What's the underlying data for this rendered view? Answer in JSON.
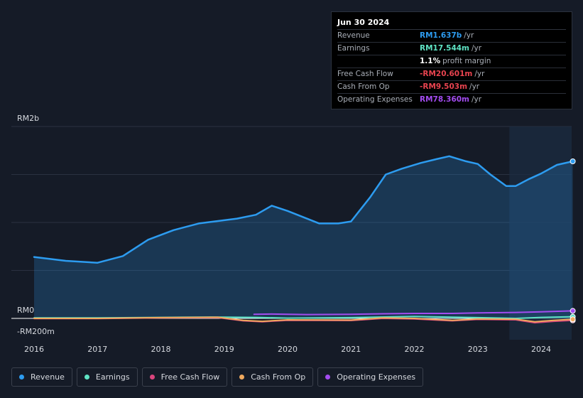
{
  "chart_data": {
    "type": "area",
    "x_labels": [
      "2016",
      "2017",
      "2018",
      "2019",
      "2020",
      "2021",
      "2022",
      "2023",
      "2024"
    ],
    "x_years": [
      2016,
      2017,
      2018,
      2019,
      2020,
      2021,
      2022,
      2023,
      2024
    ],
    "y_top_label": "RM2b",
    "y_zero_label": "RM0",
    "y_bottom_label": "-RM200m",
    "ylim": [
      -200,
      2000
    ],
    "ylabel_unit": "RM m",
    "forecast_start": 2023.5,
    "series": [
      {
        "name": "Revenue",
        "color": "#2d9cf0",
        "fill": true,
        "points": [
          [
            2016,
            640
          ],
          [
            2016.5,
            600
          ],
          [
            2017,
            580
          ],
          [
            2017.4,
            650
          ],
          [
            2017.8,
            820
          ],
          [
            2018.2,
            920
          ],
          [
            2018.6,
            990
          ],
          [
            2018.9,
            1015
          ],
          [
            2019.2,
            1040
          ],
          [
            2019.5,
            1080
          ],
          [
            2019.75,
            1175
          ],
          [
            2020,
            1120
          ],
          [
            2020.5,
            990
          ],
          [
            2020.8,
            990
          ],
          [
            2021,
            1010
          ],
          [
            2021.3,
            1260
          ],
          [
            2021.55,
            1500
          ],
          [
            2021.8,
            1560
          ],
          [
            2022.1,
            1620
          ],
          [
            2022.35,
            1660
          ],
          [
            2022.55,
            1690
          ],
          [
            2022.8,
            1640
          ],
          [
            2023,
            1610
          ],
          [
            2023.2,
            1500
          ],
          [
            2023.45,
            1380
          ],
          [
            2023.6,
            1380
          ],
          [
            2023.8,
            1450
          ],
          [
            2024,
            1510
          ],
          [
            2024.25,
            1600
          ],
          [
            2024.5,
            1637
          ]
        ]
      },
      {
        "name": "Earnings",
        "color": "#5fe3c4",
        "fill": false,
        "points": [
          [
            2016,
            5
          ],
          [
            2017,
            5
          ],
          [
            2018,
            10
          ],
          [
            2018.8,
            14
          ],
          [
            2019.5,
            10
          ],
          [
            2020,
            3
          ],
          [
            2021,
            8
          ],
          [
            2022,
            20
          ],
          [
            2023,
            8
          ],
          [
            2023.6,
            0
          ],
          [
            2024,
            10
          ],
          [
            2024.5,
            17.5
          ]
        ]
      },
      {
        "name": "Free Cash Flow",
        "color": "#d9457d",
        "fill": false,
        "points": [
          [
            2016,
            -2
          ],
          [
            2017,
            -2
          ],
          [
            2018,
            5
          ],
          [
            2018.9,
            8
          ],
          [
            2019.3,
            -25
          ],
          [
            2019.6,
            -35
          ],
          [
            2020,
            -20
          ],
          [
            2021,
            -22
          ],
          [
            2021.5,
            0
          ],
          [
            2022,
            -5
          ],
          [
            2022.6,
            -25
          ],
          [
            2023,
            -10
          ],
          [
            2023.6,
            -15
          ],
          [
            2023.9,
            -45
          ],
          [
            2024.2,
            -30
          ],
          [
            2024.5,
            -20.6
          ]
        ]
      },
      {
        "name": "Cash From Op",
        "color": "#f0a95e",
        "fill": false,
        "points": [
          [
            2016,
            0
          ],
          [
            2017,
            0
          ],
          [
            2018,
            8
          ],
          [
            2018.9,
            12
          ],
          [
            2019.3,
            -20
          ],
          [
            2019.6,
            -30
          ],
          [
            2020,
            -15
          ],
          [
            2021,
            -18
          ],
          [
            2021.5,
            5
          ],
          [
            2022,
            0
          ],
          [
            2022.6,
            -20
          ],
          [
            2023,
            -5
          ],
          [
            2023.6,
            -8
          ],
          [
            2023.9,
            -35
          ],
          [
            2024.2,
            -20
          ],
          [
            2024.5,
            -9.5
          ]
        ]
      },
      {
        "name": "Operating Expenses",
        "color": "#a34cf0",
        "fill": false,
        "points": [
          [
            2019.47,
            42
          ],
          [
            2019.75,
            45
          ],
          [
            2020.3,
            40
          ],
          [
            2021,
            42
          ],
          [
            2021.5,
            48
          ],
          [
            2022,
            52
          ],
          [
            2022.6,
            52
          ],
          [
            2023,
            58
          ],
          [
            2023.6,
            62
          ],
          [
            2024,
            68
          ],
          [
            2024.5,
            78.4
          ]
        ]
      }
    ]
  },
  "tooltip": {
    "date": "Jun 30 2024",
    "rows": [
      {
        "label": "Revenue",
        "value": "RM1.637b",
        "unit": "/yr",
        "color": "#2d9cf0"
      },
      {
        "label": "Earnings",
        "value": "RM17.544m",
        "unit": "/yr",
        "color": "#5fe3c4"
      },
      {
        "label": "",
        "value": "1.1%",
        "unit": "profit margin",
        "color": "#ffffff"
      },
      {
        "label": "Free Cash Flow",
        "value": "-RM20.601m",
        "unit": "/yr",
        "color": "#e8434f"
      },
      {
        "label": "Cash From Op",
        "value": "-RM9.503m",
        "unit": "/yr",
        "color": "#e8434f"
      },
      {
        "label": "Operating Expenses",
        "value": "RM78.360m",
        "unit": "/yr",
        "color": "#a34cf0"
      }
    ]
  },
  "legend": [
    {
      "label": "Revenue",
      "color": "#2d9cf0"
    },
    {
      "label": "Earnings",
      "color": "#5fe3c4"
    },
    {
      "label": "Free Cash Flow",
      "color": "#d9457d"
    },
    {
      "label": "Cash From Op",
      "color": "#f0a95e"
    },
    {
      "label": "Operating Expenses",
      "color": "#a34cf0"
    }
  ]
}
